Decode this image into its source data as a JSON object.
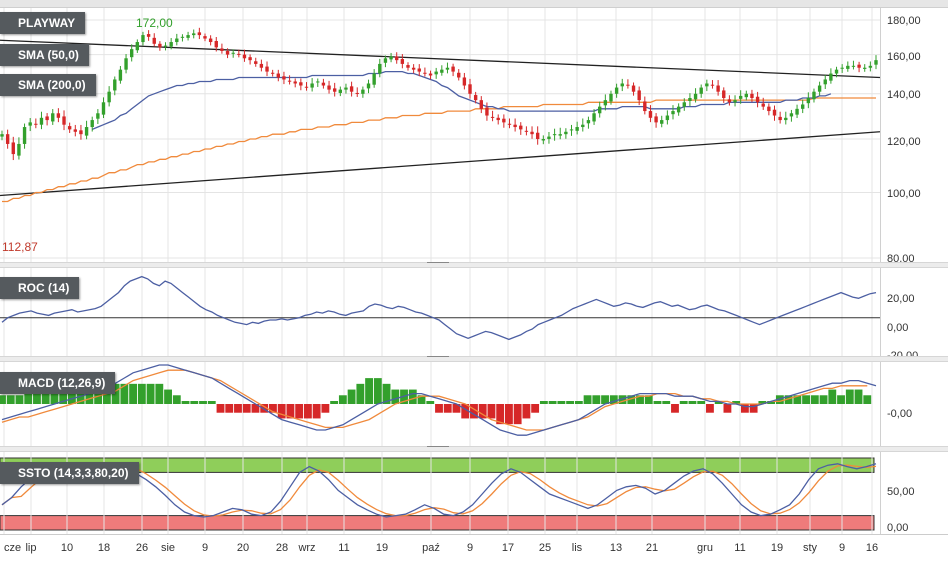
{
  "panels": {
    "price": {
      "title": "PLAYWAY",
      "sma50_label": "SMA (50,0)",
      "sma200_label": "SMA (200,0)",
      "high_annotation": "172,00",
      "low_annotation": "112,87",
      "y_ticks": [
        "180,00",
        "160,00",
        "140,00",
        "120,00",
        "100,00",
        "80,00"
      ]
    },
    "roc": {
      "title": "ROC (14)",
      "y_ticks": [
        "20,00",
        "0,00",
        "-20,00"
      ]
    },
    "macd": {
      "title": "MACD (12,26,9)",
      "y_ticks": [
        "-0,00"
      ]
    },
    "ssto": {
      "title": "SSTO (14,3,3,80,20)",
      "y_ticks": [
        "50,00",
        "0,00"
      ]
    }
  },
  "x_axis": {
    "labels": [
      "cze",
      "lip",
      "10",
      "18",
      "26",
      "sie",
      "9",
      "20",
      "28",
      "wrz",
      "11",
      "19",
      "paź",
      "9",
      "17",
      "25",
      "lis",
      "13",
      "21",
      "gru",
      "11",
      "19",
      "sty",
      "9",
      "16"
    ]
  },
  "colors": {
    "up": "#33a02c",
    "down": "#d62728",
    "sma50": "#4c5fa3",
    "sma200": "#f08a3c",
    "roc_line": "#4c5fa3",
    "macd_line": "#4c5fa3",
    "signal_line": "#f08a3c",
    "ssto_k": "#4c5fa3",
    "ssto_d": "#f08a3c",
    "overbought_band": "#8fce5a",
    "oversold_band": "#ef7b7b"
  },
  "chart_data": [
    {
      "type": "candlestick",
      "title": "PLAYWAY",
      "ylim": [
        80,
        185
      ],
      "y_scale": "log",
      "grid": true,
      "close": [
        122,
        118,
        114,
        118,
        125,
        127,
        126,
        129,
        128,
        131,
        129,
        126,
        124,
        123,
        122,
        125,
        128,
        131,
        136,
        141,
        147,
        152,
        158,
        163,
        167,
        171,
        170,
        166,
        164,
        165,
        167,
        169,
        170,
        171,
        172,
        171,
        169,
        167,
        164,
        162,
        160,
        161,
        160,
        158,
        157,
        155,
        153,
        151,
        150,
        148,
        147,
        146,
        145,
        144,
        143,
        145,
        146,
        144,
        142,
        141,
        142,
        143,
        141,
        140,
        142,
        145,
        150,
        155,
        158,
        159,
        157,
        155,
        153,
        152,
        151,
        150,
        149,
        151,
        152,
        153,
        151,
        148,
        144,
        140,
        137,
        133,
        130,
        129,
        128,
        127,
        126,
        125,
        124,
        123,
        122,
        120,
        120,
        121,
        122,
        122,
        123,
        124,
        125,
        126,
        128,
        131,
        134,
        137,
        140,
        143,
        145,
        144,
        141,
        137,
        132,
        129,
        127,
        128,
        130,
        132,
        134,
        136,
        138,
        140,
        143,
        145,
        144,
        141,
        138,
        136,
        137,
        139,
        140,
        138,
        136,
        134,
        132,
        130,
        128,
        129,
        131,
        133,
        135,
        138,
        141,
        144,
        147,
        150,
        152,
        153,
        154,
        154,
        153,
        153,
        154,
        157
      ],
      "sma50": [
        null,
        null,
        null,
        null,
        null,
        null,
        null,
        null,
        null,
        null,
        null,
        null,
        null,
        null,
        null,
        null,
        124,
        125,
        126,
        127,
        128,
        130,
        131,
        133,
        135,
        137,
        139,
        140,
        141,
        142,
        143,
        144,
        144,
        145,
        145,
        146,
        146,
        146,
        147,
        147,
        147,
        147,
        148,
        148,
        148,
        148,
        148,
        148,
        148,
        148,
        148,
        148,
        148,
        148,
        148,
        149,
        149,
        149,
        149,
        149,
        149,
        149,
        149,
        149,
        149,
        150,
        150,
        150,
        151,
        151,
        151,
        151,
        150,
        150,
        149,
        148,
        147,
        146,
        144,
        143,
        141,
        139,
        138,
        137,
        136,
        135,
        134,
        134,
        133,
        133,
        132,
        132,
        132,
        132,
        132,
        132,
        132,
        132,
        132,
        132,
        132,
        132,
        132,
        132,
        132,
        132,
        133,
        133,
        133,
        133,
        134,
        134,
        134,
        134,
        134,
        133,
        133,
        133,
        133,
        133,
        133,
        134,
        134,
        134,
        135,
        135,
        135,
        135,
        135,
        136,
        136,
        136,
        136,
        136,
        136,
        136,
        136,
        136,
        136,
        137,
        137,
        137,
        138,
        138,
        138,
        139,
        139,
        140
      ],
      "sma200": [
        97,
        97,
        98,
        98,
        99,
        99,
        100,
        100,
        101,
        101,
        102,
        102,
        103,
        103,
        104,
        104,
        105,
        105,
        106,
        107,
        107,
        108,
        108,
        109,
        110,
        110,
        111,
        111,
        112,
        112,
        113,
        113,
        114,
        114,
        115,
        115,
        116,
        116,
        117,
        117,
        118,
        118,
        119,
        119,
        120,
        120,
        121,
        121,
        122,
        122,
        122,
        123,
        123,
        124,
        124,
        124,
        125,
        125,
        125,
        126,
        126,
        126,
        127,
        127,
        127,
        128,
        128,
        128,
        129,
        129,
        129,
        130,
        130,
        130,
        130,
        131,
        131,
        131,
        131,
        132,
        132,
        132,
        132,
        132,
        133,
        133,
        133,
        133,
        133,
        134,
        134,
        134,
        134,
        134,
        134,
        134,
        135,
        135,
        135,
        135,
        135,
        135,
        135,
        135,
        136,
        136,
        136,
        136,
        136,
        136,
        136,
        136,
        136,
        136,
        136,
        136,
        137,
        137,
        137,
        137,
        137,
        137,
        137,
        137,
        137,
        137,
        137,
        137,
        137,
        137,
        137,
        137,
        137,
        137,
        137,
        137,
        137,
        137,
        137,
        137,
        137,
        137,
        137,
        137,
        138,
        138,
        138,
        138,
        138,
        138,
        138,
        138,
        138,
        138,
        138,
        138
      ],
      "annotations": [
        {
          "text": "172,00"
        },
        {
          "text": "112,87"
        }
      ]
    },
    {
      "type": "line",
      "title": "ROC (14)",
      "ylim": [
        -30,
        40
      ],
      "series_values": [
        -4,
        0,
        2,
        4,
        5,
        6,
        4,
        3,
        2,
        4,
        5,
        6,
        7,
        5,
        6,
        7,
        8,
        10,
        14,
        18,
        22,
        28,
        32,
        34,
        36,
        34,
        30,
        28,
        32,
        30,
        26,
        22,
        18,
        14,
        10,
        7,
        5,
        2,
        0,
        -2,
        -4,
        -5,
        -6,
        -4,
        -5,
        -3,
        -2,
        -2,
        -1,
        -2,
        -1,
        0,
        2,
        3,
        5,
        4,
        6,
        5,
        3,
        2,
        4,
        5,
        6,
        10,
        12,
        11,
        9,
        8,
        10,
        9,
        7,
        5,
        4,
        2,
        0,
        -2,
        -6,
        -10,
        -14,
        -16,
        -18,
        -16,
        -14,
        -12,
        -13,
        -15,
        -17,
        -19,
        -17,
        -15,
        -12,
        -10,
        -6,
        -4,
        -2,
        0,
        2,
        5,
        8,
        10,
        12,
        14,
        16,
        14,
        12,
        10,
        11,
        13,
        12,
        10,
        9,
        11,
        13,
        14,
        12,
        10,
        11,
        9,
        7,
        8,
        10,
        11,
        9,
        7,
        6,
        4,
        2,
        0,
        -2,
        -4,
        -6,
        -4,
        -2,
        0,
        2,
        4,
        6,
        8,
        10,
        12,
        14,
        16,
        18,
        20,
        22,
        20,
        18,
        17,
        19,
        21,
        22
      ]
    },
    {
      "type": "bar+line",
      "title": "MACD (12,26,9)",
      "macd": [
        -6,
        -5,
        -4,
        -3,
        -2,
        -1,
        0,
        1,
        2,
        3,
        4,
        5,
        6,
        8,
        10,
        12,
        13,
        14,
        15,
        15,
        14,
        13,
        12,
        11,
        10,
        8,
        6,
        4,
        2,
        0,
        -2,
        -4,
        -6,
        -7,
        -8,
        -9,
        -10,
        -10,
        -9,
        -8,
        -6,
        -4,
        -2,
        0,
        1,
        2,
        3,
        4,
        4,
        3,
        2,
        1,
        0,
        -2,
        -4,
        -6,
        -8,
        -10,
        -11,
        -12,
        -12,
        -11,
        -10,
        -9,
        -8,
        -7,
        -6,
        -4,
        -2,
        0,
        1,
        2,
        3,
        4,
        4,
        4,
        4,
        3,
        3,
        3,
        2,
        1,
        1,
        0,
        0,
        -1,
        -1,
        0,
        1,
        2,
        3,
        4,
        5,
        6,
        7,
        8,
        8,
        9,
        9,
        8,
        7
      ],
      "signal": [
        -7,
        -6,
        -5,
        -5,
        -4,
        -3,
        -2,
        -1,
        0,
        1,
        2,
        3,
        4,
        5,
        7,
        9,
        10,
        11,
        12,
        13,
        13,
        13,
        12,
        11,
        10,
        9,
        7,
        5,
        3,
        1,
        -1,
        -3,
        -4,
        -5,
        -6,
        -7,
        -8,
        -9,
        -9,
        -9,
        -8,
        -7,
        -6,
        -4,
        -2,
        0,
        1,
        2,
        3,
        3,
        3,
        2,
        1,
        0,
        -2,
        -4,
        -6,
        -7,
        -8,
        -9,
        -10,
        -10,
        -10,
        -9,
        -8,
        -7,
        -6,
        -5,
        -3,
        -1,
        0,
        1,
        2,
        3,
        3,
        4,
        4,
        4,
        3,
        3,
        2,
        2,
        1,
        1,
        0,
        0,
        0,
        0,
        1,
        1,
        2,
        3,
        4,
        5,
        6,
        6,
        7,
        7,
        7,
        7
      ]
    },
    {
      "type": "line",
      "title": "SSTO (14,3,3,80,20)",
      "ylim": [
        0,
        100
      ],
      "bands": {
        "overbought": 80,
        "oversold": 20
      },
      "k": [
        35,
        45,
        60,
        72,
        80,
        85,
        82,
        78,
        70,
        72,
        80,
        88,
        92,
        86,
        78,
        70,
        60,
        48,
        35,
        25,
        20,
        18,
        20,
        25,
        30,
        28,
        22,
        20,
        25,
        40,
        60,
        80,
        88,
        82,
        70,
        55,
        45,
        35,
        28,
        22,
        18,
        20,
        22,
        28,
        35,
        30,
        22,
        20,
        25,
        35,
        50,
        65,
        78,
        85,
        80,
        70,
        60,
        50,
        45,
        40,
        35,
        30,
        35,
        45,
        55,
        60,
        62,
        58,
        50,
        55,
        65,
        75,
        82,
        85,
        78,
        65,
        50,
        35,
        25,
        20,
        22,
        28,
        35,
        50,
        70,
        85,
        90,
        92,
        88,
        85,
        88,
        92
      ]
    }
  ]
}
